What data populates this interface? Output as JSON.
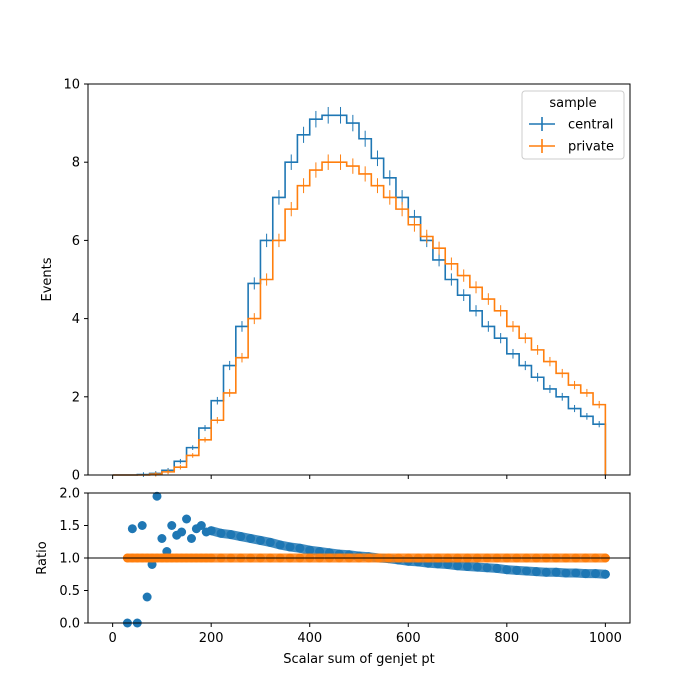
{
  "chart_data": [
    {
      "type": "step-histogram",
      "xlabel": "",
      "ylabel": "Events",
      "xlim": [
        -50,
        1050
      ],
      "ylim": [
        0,
        10
      ],
      "yticks": [
        0,
        2,
        4,
        6,
        8,
        10
      ],
      "xticks": [
        0,
        200,
        400,
        600,
        800,
        1000
      ],
      "legend": {
        "title": "sample",
        "placement": "top-right"
      },
      "grid": false,
      "x": [
        0,
        25,
        50,
        75,
        100,
        125,
        150,
        175,
        200,
        225,
        250,
        275,
        300,
        325,
        350,
        375,
        400,
        425,
        450,
        475,
        500,
        525,
        550,
        575,
        600,
        625,
        650,
        675,
        700,
        725,
        750,
        775,
        800,
        825,
        850,
        875,
        900,
        925,
        950,
        975,
        1000
      ],
      "series": [
        {
          "name": "central",
          "color": "#1f77b4",
          "values": [
            0.0,
            0.0,
            0.01,
            0.04,
            0.12,
            0.35,
            0.7,
            1.2,
            1.9,
            2.8,
            3.8,
            4.9,
            6.0,
            7.1,
            8.0,
            8.7,
            9.1,
            9.2,
            9.2,
            9.0,
            8.6,
            8.1,
            7.6,
            7.1,
            6.6,
            6.0,
            5.5,
            5.0,
            4.6,
            4.2,
            3.8,
            3.5,
            3.1,
            2.8,
            2.5,
            2.2,
            2.0,
            1.7,
            1.5,
            1.3,
            1.1
          ]
        },
        {
          "name": "private",
          "color": "#ff7f0e",
          "values": [
            0.0,
            0.0,
            0.0,
            0.02,
            0.08,
            0.2,
            0.5,
            0.9,
            1.4,
            2.1,
            3.0,
            4.0,
            5.0,
            6.0,
            6.8,
            7.4,
            7.8,
            8.0,
            8.0,
            7.9,
            7.7,
            7.4,
            7.1,
            6.8,
            6.4,
            6.1,
            5.8,
            5.4,
            5.1,
            4.8,
            4.5,
            4.2,
            3.8,
            3.5,
            3.2,
            2.9,
            2.6,
            2.3,
            2.1,
            1.8,
            1.5
          ]
        }
      ]
    },
    {
      "type": "scatter",
      "xlabel": "Scalar sum of genjet pt",
      "ylabel": "Ratio",
      "xlim": [
        -50,
        1050
      ],
      "ylim": [
        0,
        2.0
      ],
      "yticks": [
        "0.0",
        "0.5",
        "1.0",
        "1.5",
        "2.0"
      ],
      "xticks": [
        0,
        200,
        400,
        600,
        800,
        1000
      ],
      "reference_line": 1.0,
      "grid": false,
      "x": [
        30,
        40,
        50,
        60,
        70,
        80,
        90,
        100,
        110,
        120,
        130,
        140,
        150,
        160,
        170,
        180,
        190,
        200,
        220,
        240,
        260,
        280,
        300,
        320,
        340,
        360,
        380,
        400,
        420,
        440,
        460,
        480,
        500,
        520,
        540,
        560,
        580,
        600,
        620,
        640,
        660,
        680,
        700,
        720,
        740,
        760,
        780,
        800,
        820,
        840,
        860,
        880,
        900,
        920,
        940,
        960,
        980,
        1000
      ],
      "series": [
        {
          "name": "central",
          "color": "#1f77b4",
          "values": [
            0.0,
            1.45,
            0.0,
            1.5,
            0.4,
            0.9,
            1.95,
            1.3,
            1.1,
            1.5,
            1.35,
            1.4,
            1.6,
            1.3,
            1.45,
            1.5,
            1.4,
            1.42,
            1.38,
            1.36,
            1.33,
            1.3,
            1.27,
            1.24,
            1.2,
            1.17,
            1.15,
            1.12,
            1.1,
            1.08,
            1.06,
            1.05,
            1.03,
            1.02,
            1.0,
            0.99,
            0.97,
            0.95,
            0.94,
            0.92,
            0.91,
            0.9,
            0.88,
            0.87,
            0.86,
            0.85,
            0.84,
            0.82,
            0.81,
            0.8,
            0.79,
            0.78,
            0.78,
            0.77,
            0.77,
            0.76,
            0.76,
            0.75
          ]
        },
        {
          "name": "private",
          "color": "#ff7f0e",
          "values": [
            1.0,
            1.0,
            1.0,
            1.0,
            1.0,
            1.0,
            1.0,
            1.0,
            1.0,
            1.0,
            1.0,
            1.0,
            1.0,
            1.0,
            1.0,
            1.0,
            1.0,
            1.0,
            1.0,
            1.0,
            1.0,
            1.0,
            1.0,
            1.0,
            1.0,
            1.0,
            1.0,
            1.0,
            1.0,
            1.0,
            1.0,
            1.0,
            1.0,
            1.0,
            1.0,
            1.0,
            1.0,
            1.0,
            1.0,
            1.0,
            1.0,
            1.0,
            1.0,
            1.0,
            1.0,
            1.0,
            1.0,
            1.0,
            1.0,
            1.0,
            1.0,
            1.0,
            1.0,
            1.0,
            1.0,
            1.0,
            1.0,
            1.0
          ]
        }
      ]
    }
  ]
}
